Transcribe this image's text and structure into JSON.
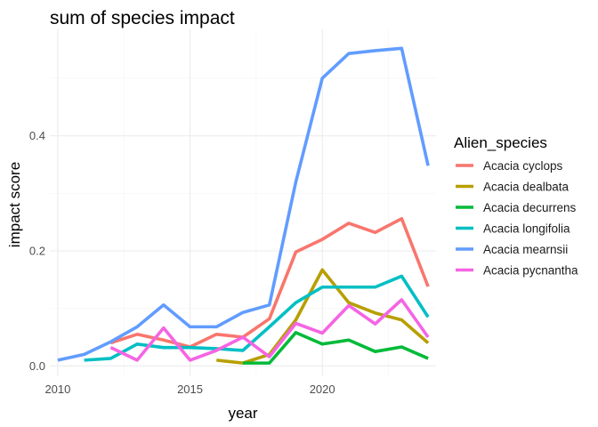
{
  "chart_data": {
    "type": "line",
    "title": "sum of species impact",
    "xlabel": "year",
    "ylabel": "impact score",
    "xlim": [
      2009.7,
      2024.3
    ],
    "ylim": [
      -0.018,
      0.585
    ],
    "x_ticks": [
      2010,
      2015,
      2020
    ],
    "y_ticks": [
      0.0,
      0.2,
      0.4
    ],
    "x_tick_labels": [
      "2010",
      "2015",
      "2020"
    ],
    "y_tick_labels": [
      "0.0",
      "0.2",
      "0.4"
    ],
    "grid": true,
    "legend_placement": "right",
    "legend_title": "Alien_species",
    "series": [
      {
        "name": "Acacia cyclops",
        "color": "#F8766D",
        "x": [
          2012,
          2013,
          2014,
          2015,
          2016,
          2017,
          2018,
          2019,
          2020,
          2021,
          2022,
          2023,
          2024
        ],
        "y": [
          0.04,
          0.055,
          0.045,
          0.033,
          0.055,
          0.05,
          0.082,
          0.198,
          0.22,
          0.248,
          0.232,
          0.256,
          0.138
        ]
      },
      {
        "name": "Acacia dealbata",
        "color": "#B79F00",
        "x": [
          2016,
          2017,
          2018,
          2019,
          2020,
          2021,
          2022,
          2023,
          2024
        ],
        "y": [
          0.01,
          0.005,
          0.02,
          0.08,
          0.167,
          0.11,
          0.092,
          0.08,
          0.04
        ]
      },
      {
        "name": "Acacia decurrens",
        "color": "#00BA38",
        "x": [
          2017,
          2018,
          2019,
          2020,
          2021,
          2022,
          2023,
          2024
        ],
        "y": [
          0.005,
          0.005,
          0.058,
          0.038,
          0.045,
          0.025,
          0.033,
          0.013
        ]
      },
      {
        "name": "Acacia longifolia",
        "color": "#00BFC4",
        "x": [
          2011,
          2012,
          2013,
          2014,
          2015,
          2016,
          2017,
          2018,
          2019,
          2020,
          2021,
          2022,
          2023,
          2024
        ],
        "y": [
          0.01,
          0.013,
          0.038,
          0.032,
          0.032,
          0.03,
          0.027,
          0.068,
          0.11,
          0.137,
          0.137,
          0.137,
          0.156,
          0.085
        ]
      },
      {
        "name": "Acacia mearnsii",
        "color": "#619CFF",
        "x": [
          2010,
          2011,
          2012,
          2013,
          2014,
          2015,
          2016,
          2017,
          2018,
          2019,
          2020,
          2021,
          2022,
          2023,
          2024
        ],
        "y": [
          0.01,
          0.02,
          0.042,
          0.068,
          0.106,
          0.068,
          0.068,
          0.093,
          0.106,
          0.32,
          0.5,
          0.543,
          0.548,
          0.552,
          0.348
        ]
      },
      {
        "name": "Acacia pycnantha",
        "color": "#F564E3",
        "x": [
          2012,
          2013,
          2014,
          2015,
          2016,
          2017,
          2018,
          2019,
          2020,
          2021,
          2022,
          2023,
          2024
        ],
        "y": [
          0.032,
          0.01,
          0.066,
          0.01,
          0.027,
          0.05,
          0.016,
          0.074,
          0.057,
          0.105,
          0.073,
          0.115,
          0.05
        ]
      }
    ]
  }
}
